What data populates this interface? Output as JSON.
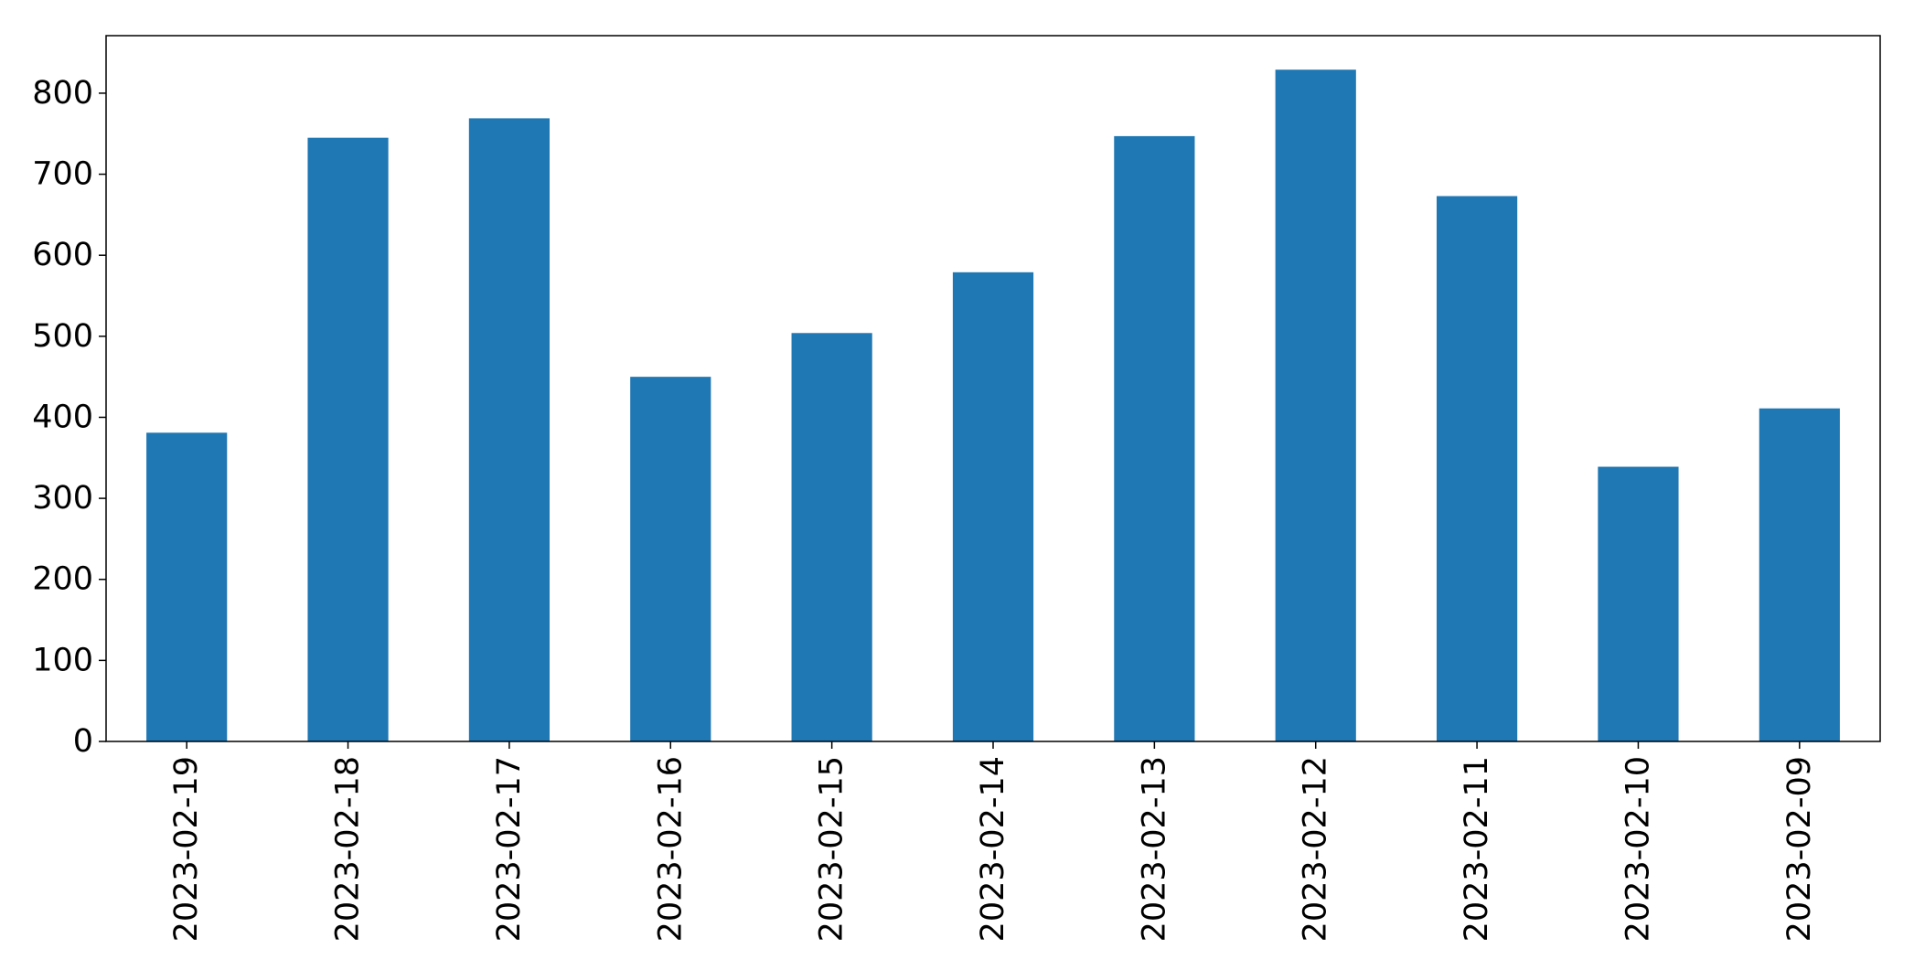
{
  "chart_data": {
    "type": "bar",
    "title": "",
    "xlabel": "",
    "ylabel": "",
    "categories": [
      "2023-02-19",
      "2023-02-18",
      "2023-02-17",
      "2023-02-16",
      "2023-02-15",
      "2023-02-14",
      "2023-02-13",
      "2023-02-12",
      "2023-02-11",
      "2023-02-10",
      "2023-02-09"
    ],
    "values": [
      381,
      745,
      769,
      450,
      504,
      579,
      747,
      829,
      673,
      339,
      411
    ],
    "ylim": [
      0,
      871
    ],
    "yticks": [
      0,
      100,
      200,
      300,
      400,
      500,
      600,
      700,
      800
    ],
    "ytick_labels": [
      "0",
      "100",
      "200",
      "300",
      "400",
      "500",
      "600",
      "700",
      "800"
    ],
    "bar_color": "#1f77b4",
    "grid": false,
    "legend": "none"
  }
}
